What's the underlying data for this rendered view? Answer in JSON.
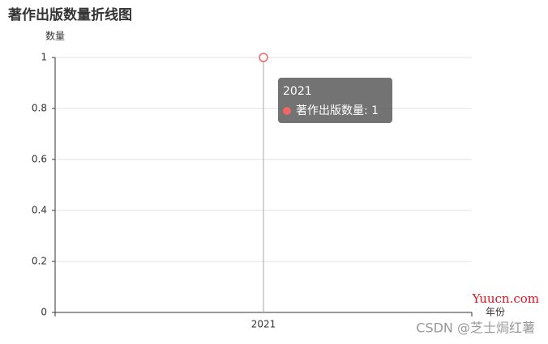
{
  "chart_data": {
    "type": "line",
    "title": "著作出版数量折线图",
    "y_label": "数量",
    "x_label": "年份",
    "categories": [
      "2021"
    ],
    "series": [
      {
        "name": "著作出版数量",
        "color": "#ee6666",
        "values": [
          1
        ]
      }
    ],
    "ylim": [
      0,
      1
    ],
    "yticks": [
      0,
      0.2,
      0.4,
      0.6,
      0.8,
      1
    ],
    "grid": true,
    "tooltip": {
      "title": "2021",
      "label": "著作出版数量: 1"
    }
  },
  "watermarks": [
    "Yuucn.com",
    "CSDN @芝士焗红薯"
  ]
}
